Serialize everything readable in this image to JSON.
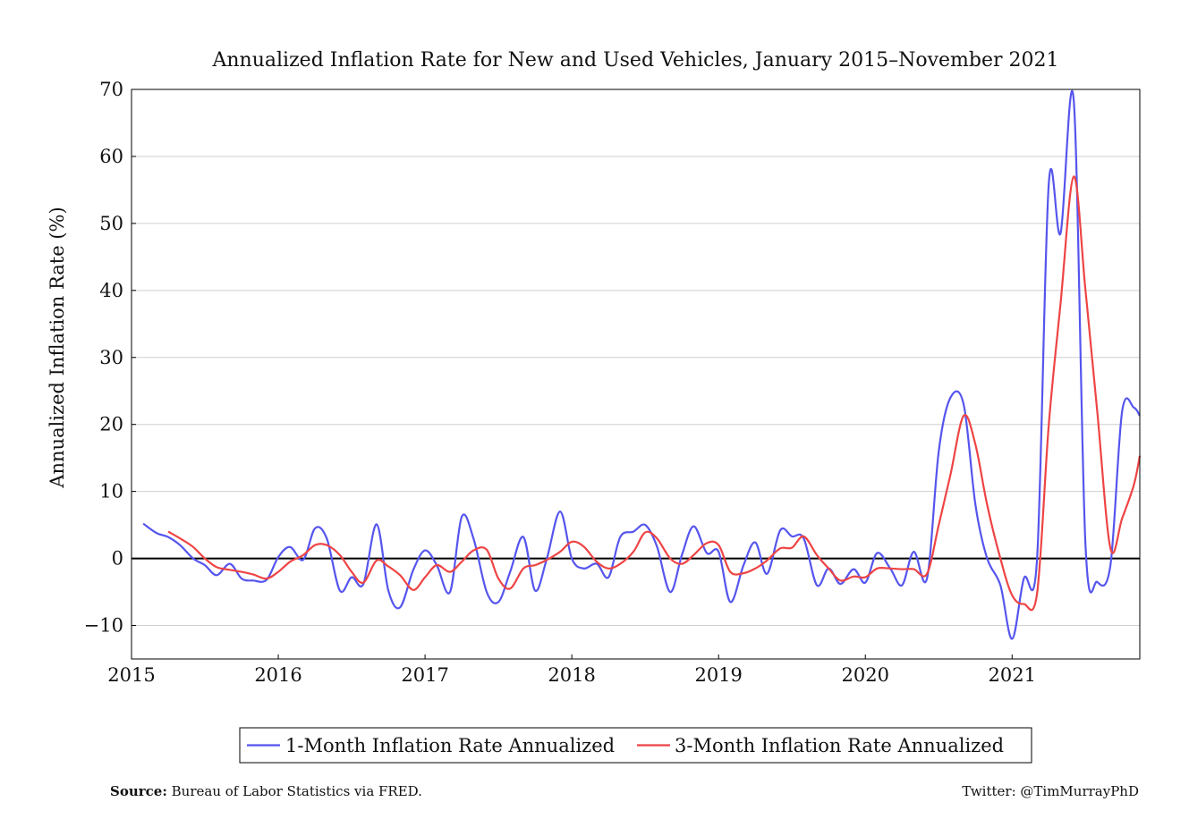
{
  "chart_data": {
    "type": "line",
    "title": "Annualized Inflation Rate for New and Used Vehicles, January 2015–November 2021",
    "xlabel": "",
    "ylabel": "Annualized Inflation Rate (%)",
    "xlim": [
      2015,
      2021.87
    ],
    "ylim": [
      -15,
      70
    ],
    "x_ticks": [
      "2015",
      "2016",
      "2017",
      "2018",
      "2019",
      "2020",
      "2021"
    ],
    "y_ticks": [
      "70",
      "60",
      "50",
      "40",
      "30",
      "20",
      "10",
      "0",
      "−10"
    ],
    "grid": true,
    "zero_line": true,
    "legend_position": "bottom-center",
    "series": [
      {
        "name": "1-Month Inflation Rate Annualized",
        "color": "#5555ee",
        "points": [
          [
            2015.08,
            5.2
          ],
          [
            2015.17,
            3.8
          ],
          [
            2015.25,
            3.2
          ],
          [
            2015.33,
            2.0
          ],
          [
            2015.42,
            0.0
          ],
          [
            2015.5,
            -1.0
          ],
          [
            2015.58,
            -2.5
          ],
          [
            2015.67,
            -0.8
          ],
          [
            2015.75,
            -3.0
          ],
          [
            2015.83,
            -3.3
          ],
          [
            2015.92,
            -3.2
          ],
          [
            2016.0,
            0.2
          ],
          [
            2016.08,
            1.7
          ],
          [
            2016.17,
            -0.2
          ],
          [
            2016.25,
            4.5
          ],
          [
            2016.33,
            3.0
          ],
          [
            2016.42,
            -4.8
          ],
          [
            2016.5,
            -2.8
          ],
          [
            2016.58,
            -3.8
          ],
          [
            2016.67,
            5.1
          ],
          [
            2016.75,
            -4.8
          ],
          [
            2016.83,
            -7.3
          ],
          [
            2016.92,
            -1.7
          ],
          [
            2017.0,
            1.2
          ],
          [
            2017.08,
            -1.0
          ],
          [
            2017.17,
            -5.0
          ],
          [
            2017.25,
            6.2
          ],
          [
            2017.33,
            3.0
          ],
          [
            2017.42,
            -5.0
          ],
          [
            2017.5,
            -6.5
          ],
          [
            2017.58,
            -2.0
          ],
          [
            2017.67,
            3.2
          ],
          [
            2017.75,
            -4.8
          ],
          [
            2017.83,
            0.0
          ],
          [
            2017.92,
            7.0
          ],
          [
            2018.0,
            0.0
          ],
          [
            2018.08,
            -1.5
          ],
          [
            2018.17,
            -0.8
          ],
          [
            2018.25,
            -2.8
          ],
          [
            2018.33,
            3.2
          ],
          [
            2018.42,
            4.0
          ],
          [
            2018.5,
            5.0
          ],
          [
            2018.58,
            1.8
          ],
          [
            2018.67,
            -5.0
          ],
          [
            2018.75,
            0.5
          ],
          [
            2018.83,
            4.8
          ],
          [
            2018.92,
            0.8
          ],
          [
            2019.0,
            1.0
          ],
          [
            2019.08,
            -6.5
          ],
          [
            2019.17,
            -1.0
          ],
          [
            2019.25,
            2.4
          ],
          [
            2019.33,
            -2.3
          ],
          [
            2019.42,
            4.2
          ],
          [
            2019.5,
            3.3
          ],
          [
            2019.58,
            3.0
          ],
          [
            2019.67,
            -4.0
          ],
          [
            2019.75,
            -1.5
          ],
          [
            2019.83,
            -3.8
          ],
          [
            2019.92,
            -1.6
          ],
          [
            2020.0,
            -3.6
          ],
          [
            2020.08,
            0.8
          ],
          [
            2020.17,
            -1.5
          ],
          [
            2020.25,
            -4.0
          ],
          [
            2020.33,
            1.0
          ],
          [
            2020.42,
            -3.0
          ],
          [
            2020.5,
            16.0
          ],
          [
            2020.58,
            24.0
          ],
          [
            2020.67,
            23.0
          ],
          [
            2020.75,
            8.0
          ],
          [
            2020.83,
            0.0
          ],
          [
            2020.92,
            -4.0
          ],
          [
            2021.0,
            -12.0
          ],
          [
            2021.08,
            -3.0
          ],
          [
            2021.17,
            0.0
          ],
          [
            2021.25,
            56.0
          ],
          [
            2021.33,
            48.5
          ],
          [
            2021.42,
            68.3
          ],
          [
            2021.5,
            2.0
          ],
          [
            2021.58,
            -3.5
          ],
          [
            2021.67,
            -1.0
          ],
          [
            2021.75,
            22.0
          ],
          [
            2021.83,
            22.5
          ],
          [
            2021.87,
            21.3
          ]
        ]
      },
      {
        "name": "3-Month Inflation Rate Annualized",
        "color": "#ee4444",
        "points": [
          [
            2015.25,
            4.0
          ],
          [
            2015.33,
            3.0
          ],
          [
            2015.42,
            1.7
          ],
          [
            2015.5,
            0.0
          ],
          [
            2015.58,
            -1.3
          ],
          [
            2015.67,
            -1.7
          ],
          [
            2015.75,
            -2.0
          ],
          [
            2015.83,
            -2.4
          ],
          [
            2015.92,
            -3.0
          ],
          [
            2016.0,
            -2.0
          ],
          [
            2016.08,
            -0.5
          ],
          [
            2016.17,
            0.5
          ],
          [
            2016.25,
            2.0
          ],
          [
            2016.33,
            2.0
          ],
          [
            2016.42,
            0.5
          ],
          [
            2016.5,
            -2.0
          ],
          [
            2016.58,
            -3.6
          ],
          [
            2016.67,
            -0.3
          ],
          [
            2016.75,
            -1.2
          ],
          [
            2016.83,
            -2.5
          ],
          [
            2016.92,
            -4.7
          ],
          [
            2017.0,
            -2.8
          ],
          [
            2017.08,
            -1.0
          ],
          [
            2017.17,
            -2.0
          ],
          [
            2017.25,
            -0.5
          ],
          [
            2017.33,
            1.2
          ],
          [
            2017.42,
            1.3
          ],
          [
            2017.5,
            -3.0
          ],
          [
            2017.58,
            -4.5
          ],
          [
            2017.67,
            -1.5
          ],
          [
            2017.75,
            -1.0
          ],
          [
            2017.83,
            -0.2
          ],
          [
            2017.92,
            1.0
          ],
          [
            2018.0,
            2.5
          ],
          [
            2018.08,
            1.8
          ],
          [
            2018.17,
            -0.5
          ],
          [
            2018.25,
            -1.5
          ],
          [
            2018.33,
            -0.8
          ],
          [
            2018.42,
            1.0
          ],
          [
            2018.5,
            3.9
          ],
          [
            2018.58,
            3.0
          ],
          [
            2018.67,
            0.0
          ],
          [
            2018.75,
            -0.8
          ],
          [
            2018.83,
            0.5
          ],
          [
            2018.92,
            2.3
          ],
          [
            2019.0,
            2.0
          ],
          [
            2019.08,
            -2.0
          ],
          [
            2019.17,
            -2.2
          ],
          [
            2019.25,
            -1.5
          ],
          [
            2019.33,
            -0.3
          ],
          [
            2019.42,
            1.5
          ],
          [
            2019.5,
            1.6
          ],
          [
            2019.58,
            3.3
          ],
          [
            2019.67,
            0.5
          ],
          [
            2019.75,
            -1.5
          ],
          [
            2019.83,
            -3.3
          ],
          [
            2019.92,
            -2.7
          ],
          [
            2020.0,
            -2.8
          ],
          [
            2020.08,
            -1.5
          ],
          [
            2020.17,
            -1.5
          ],
          [
            2020.25,
            -1.6
          ],
          [
            2020.33,
            -1.6
          ],
          [
            2020.42,
            -2.3
          ],
          [
            2020.5,
            5.0
          ],
          [
            2020.58,
            12.5
          ],
          [
            2020.67,
            21.3
          ],
          [
            2020.75,
            17.0
          ],
          [
            2020.83,
            8.0
          ],
          [
            2020.92,
            0.0
          ],
          [
            2021.0,
            -5.5
          ],
          [
            2021.08,
            -6.8
          ],
          [
            2021.17,
            -5.2
          ],
          [
            2021.25,
            20.0
          ],
          [
            2021.33,
            38.0
          ],
          [
            2021.42,
            57.0
          ],
          [
            2021.5,
            40.0
          ],
          [
            2021.58,
            22.0
          ],
          [
            2021.67,
            1.5
          ],
          [
            2021.75,
            6.0
          ],
          [
            2021.83,
            11.0
          ],
          [
            2021.87,
            15.3
          ]
        ]
      }
    ]
  },
  "footer": {
    "source_label": "Source:",
    "source_text": "Bureau of Labor Statistics via FRED.",
    "twitter": "Twitter: @TimMurrayPhD"
  }
}
